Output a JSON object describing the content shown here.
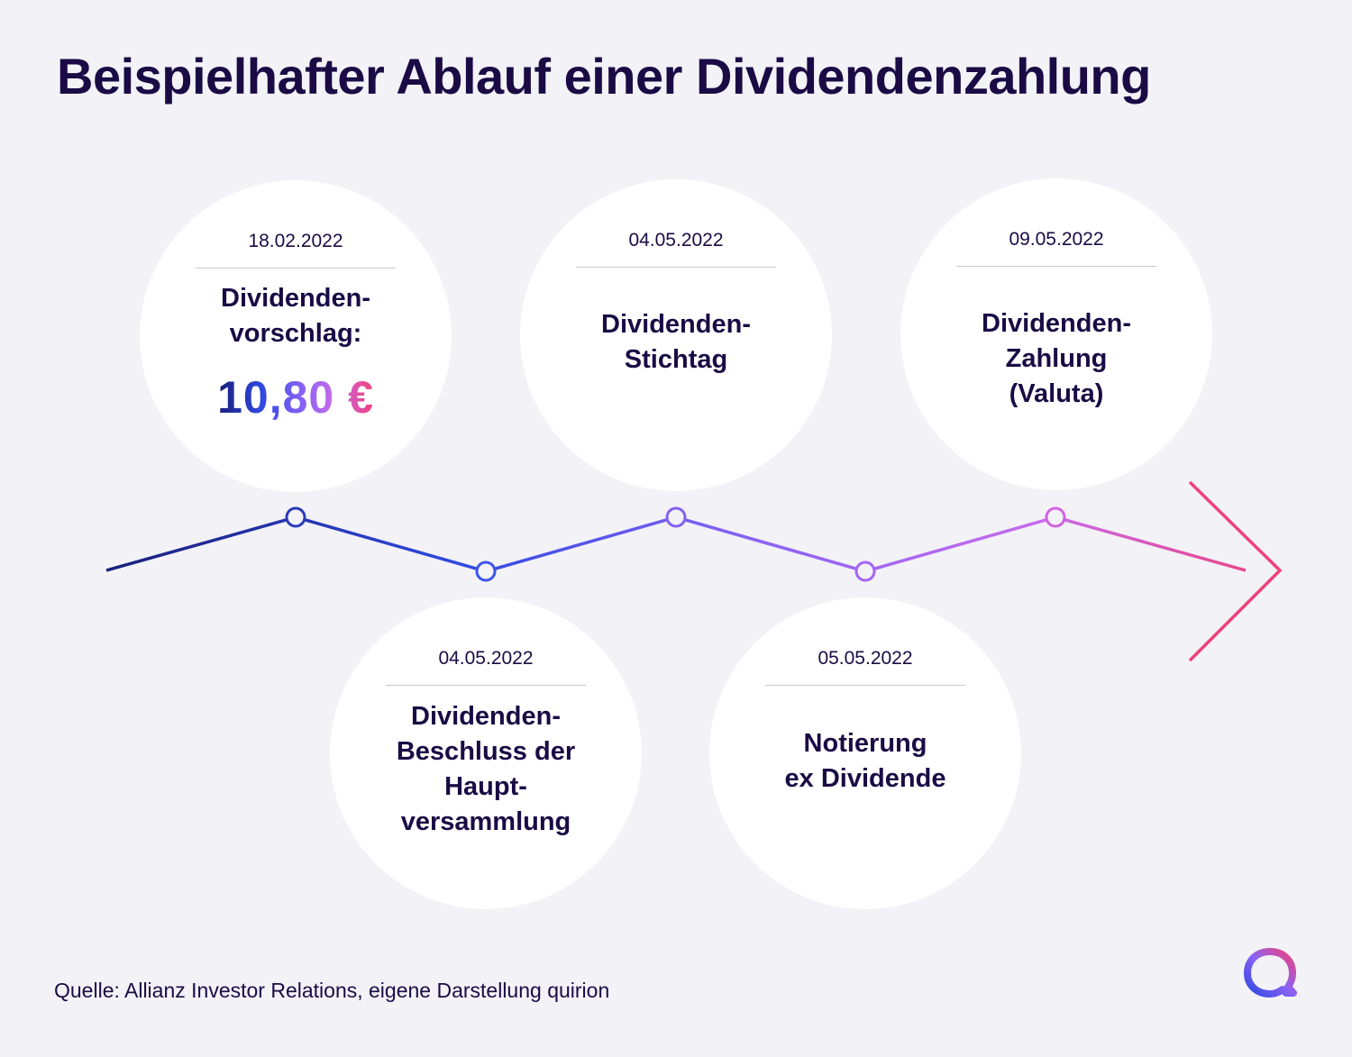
{
  "title": "Beispielhafter Ablauf einer Dividendenzahlung",
  "events": [
    {
      "date": "18.02.2022",
      "label": "Dividenden-\nvorschlag:",
      "amount": "10,80 €"
    },
    {
      "date": "04.05.2022",
      "label": "Dividenden-\nBeschluss der\nHaupt-\nversammlung"
    },
    {
      "date": "04.05.2022",
      "label": "Dividenden-\nStichtag"
    },
    {
      "date": "05.05.2022",
      "label": "Notierung\nex Dividende"
    },
    {
      "date": "09.05.2022",
      "label": "Dividenden-\nZahlung\n(Valuta)"
    }
  ],
  "source": "Quelle: Allianz Investor Relations, eigene Darstellung quirion",
  "colors": {
    "background": "#f2f2f7",
    "text": "#1a0b45",
    "gradient": [
      "#1a1f7a",
      "#2f48e0",
      "#8a63f5",
      "#c86bec",
      "#f0407a"
    ]
  }
}
